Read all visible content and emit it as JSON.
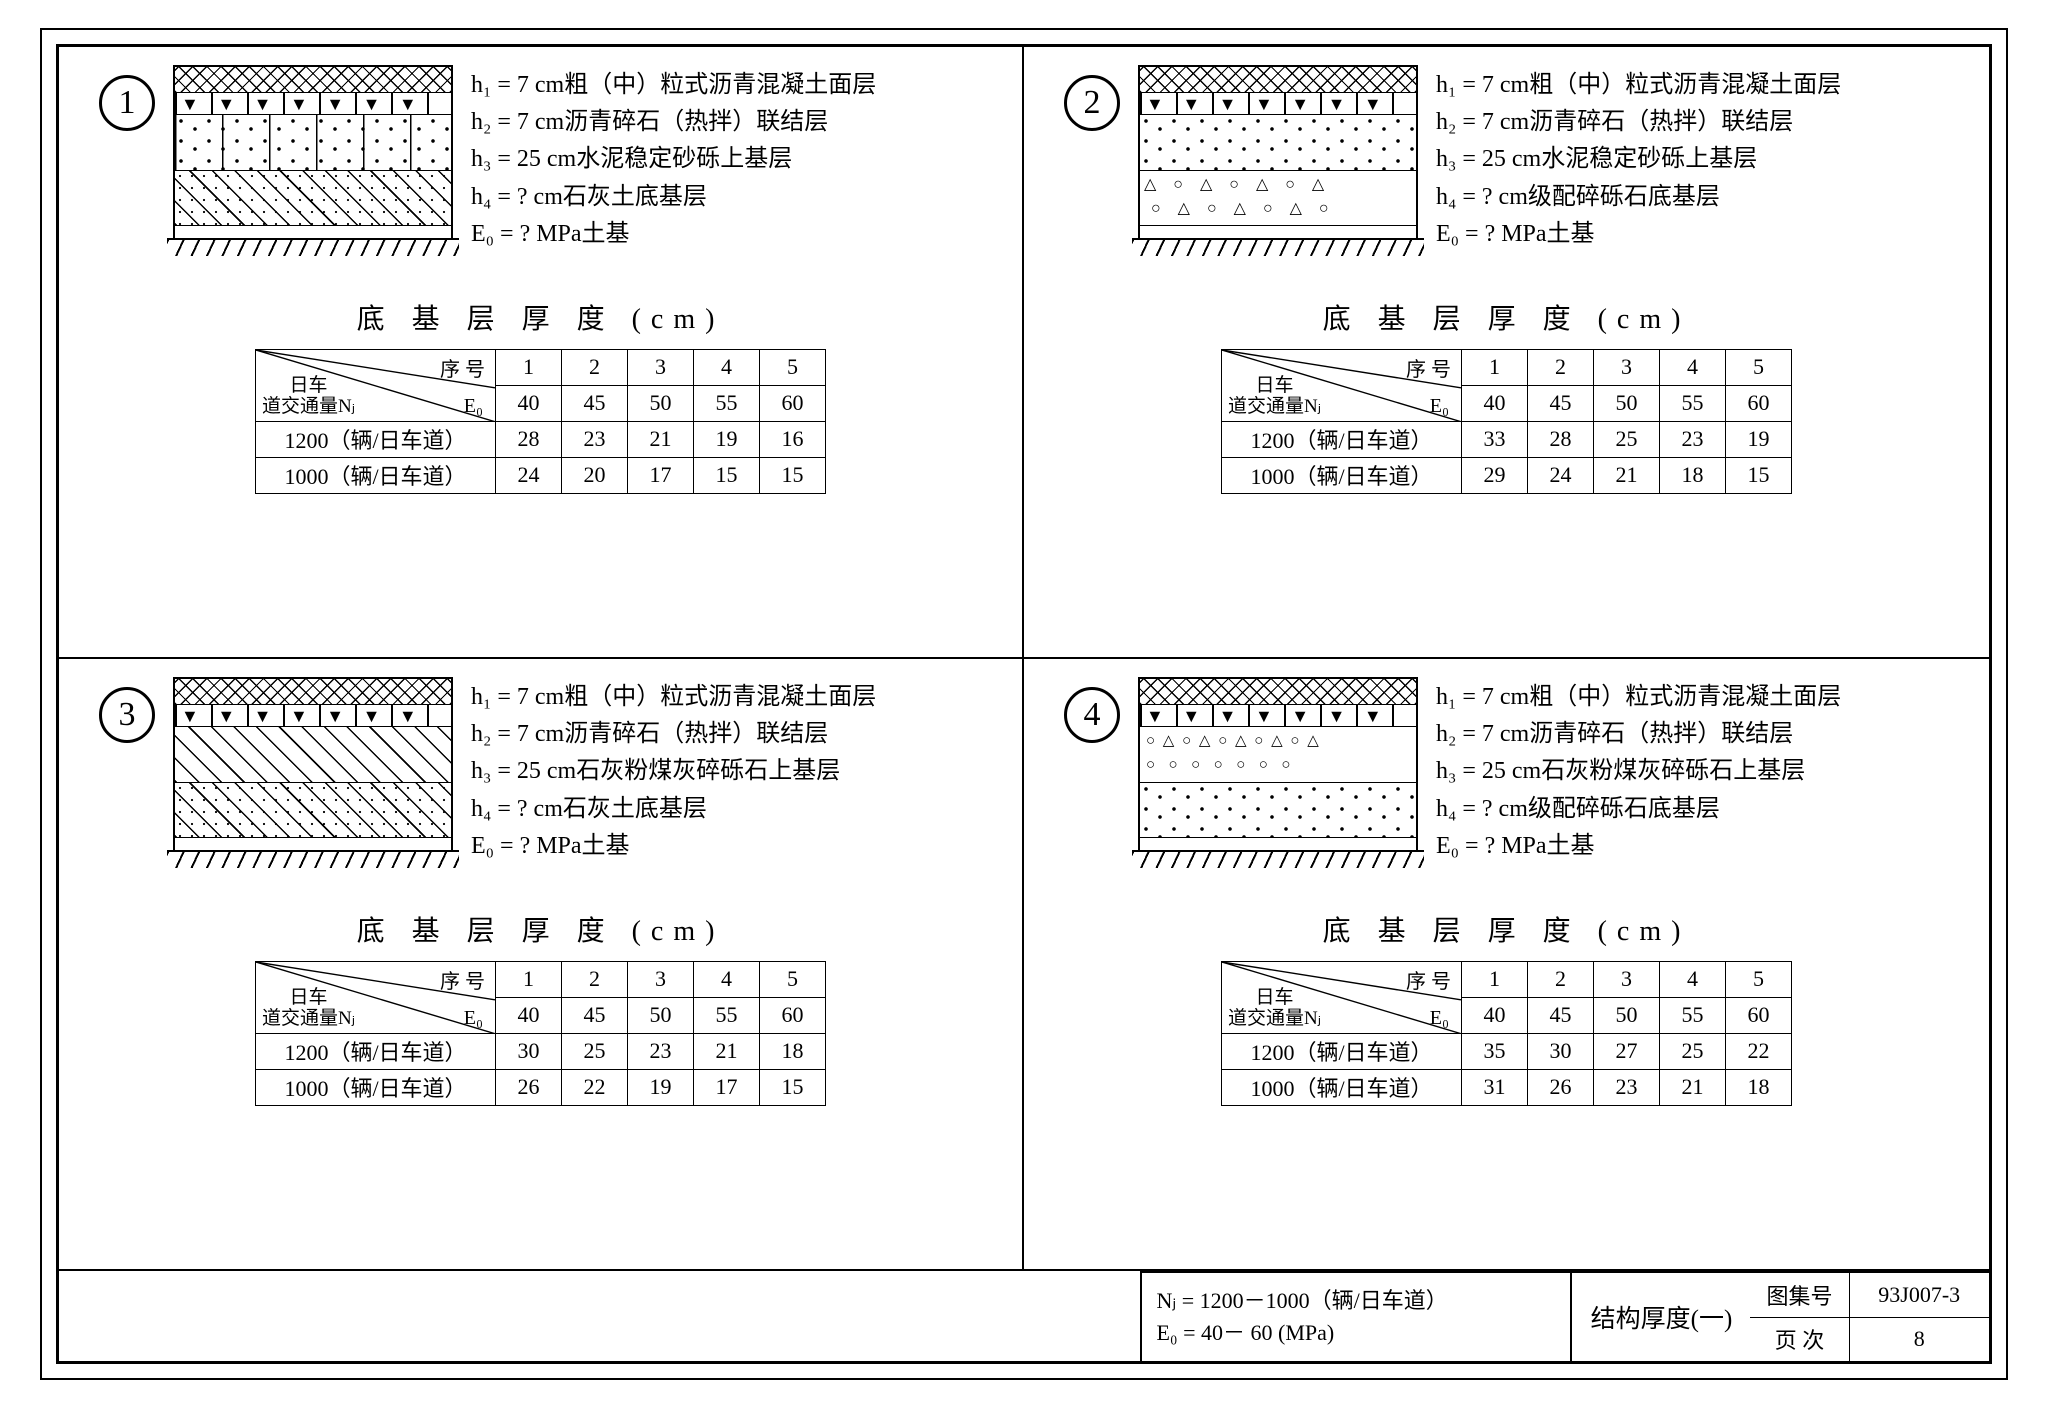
{
  "page": {
    "border_color": "#000000",
    "background": "#ffffff",
    "font_family": "SimSun"
  },
  "quadrants": [
    {
      "num": "1",
      "specs": [
        "h₁ =  7 cm粗（中）粒式沥青混凝土面层",
        "h₂ =  7 cm沥青碎石（热拌）联结层",
        "h₃ = 25 cm水泥稳定砂砾上基层",
        "h₄ =  ? cm石灰土底基层",
        "E₀ =  ? MPa土基"
      ],
      "layers": [
        "cross",
        "tri",
        "dots2",
        "diag-dots"
      ],
      "table": {
        "title": "底 基 层 厚 度   (cm)",
        "seq_label": "序 号",
        "e0_label": "E₀",
        "left_label_top": "日车",
        "left_label_bot": "道交通量Nⱼ",
        "cols": [
          "1",
          "2",
          "3",
          "4",
          "5"
        ],
        "e0_row": [
          "40",
          "45",
          "50",
          "55",
          "60"
        ],
        "rows": [
          {
            "label": "1200（辆/日车道）",
            "vals": [
              "28",
              "23",
              "21",
              "19",
              "16"
            ]
          },
          {
            "label": "1000（辆/日车道）",
            "vals": [
              "24",
              "20",
              "17",
              "15",
              "15"
            ]
          }
        ]
      }
    },
    {
      "num": "2",
      "specs": [
        "h₁ =  7 cm粗（中）粒式沥青混凝土面层",
        "h₂ =  7 cm沥青碎石（热拌）联结层",
        "h₃ = 25 cm水泥稳定砂砾上基层",
        "h₄ =  ? cm级配碎砾石底基层",
        "E₀ =  ? MPa土基"
      ],
      "layers": [
        "cross",
        "tri",
        "dots",
        "tri-open"
      ],
      "table": {
        "title": "底 基 层 厚 度   (cm)",
        "seq_label": "序 号",
        "e0_label": "E₀",
        "left_label_top": "日车",
        "left_label_bot": "道交通量Nⱼ",
        "cols": [
          "1",
          "2",
          "3",
          "4",
          "5"
        ],
        "e0_row": [
          "40",
          "45",
          "50",
          "55",
          "60"
        ],
        "rows": [
          {
            "label": "1200（辆/日车道）",
            "vals": [
              "33",
              "28",
              "25",
              "23",
              "19"
            ]
          },
          {
            "label": "1000（辆/日车道）",
            "vals": [
              "29",
              "24",
              "21",
              "18",
              "15"
            ]
          }
        ]
      }
    },
    {
      "num": "3",
      "specs": [
        "h₁ =  7 cm粗（中）粒式沥青混凝土面层",
        "h₂ =  7 cm沥青碎石（热拌）联结层",
        "h₃ = 25 cm石灰粉煤灰碎砾石上基层",
        "h₄ =  ? cm石灰土底基层",
        "E₀ =  ? MPa土基"
      ],
      "layers": [
        "cross",
        "tri",
        "diag",
        "diag-dots"
      ],
      "table": {
        "title": "底 基 层 厚 度   (cm)",
        "seq_label": "序 号",
        "e0_label": "E₀",
        "left_label_top": "日车",
        "left_label_bot": "道交通量Nⱼ",
        "cols": [
          "1",
          "2",
          "3",
          "4",
          "5"
        ],
        "e0_row": [
          "40",
          "45",
          "50",
          "55",
          "60"
        ],
        "rows": [
          {
            "label": "1200（辆/日车道）",
            "vals": [
              "30",
              "25",
              "23",
              "21",
              "18"
            ]
          },
          {
            "label": "1000（辆/日车道）",
            "vals": [
              "26",
              "22",
              "19",
              "17",
              "15"
            ]
          }
        ]
      }
    },
    {
      "num": "4",
      "specs": [
        "h₁ =  7 cm粗（中）粒式沥青混凝土面层",
        "h₂ =  7 cm沥青碎石（热拌）联结层",
        "h₃ = 25 cm石灰粉煤灰碎砾石上基层",
        "h₄ =  ? cm级配碎砾石底基层",
        "E₀ =  ? MPa土基"
      ],
      "layers": [
        "cross",
        "tri",
        "cirtri",
        "dots"
      ],
      "table": {
        "title": "底 基 层 厚 度   (cm)",
        "seq_label": "序 号",
        "e0_label": "E₀",
        "left_label_top": "日车",
        "left_label_bot": "道交通量Nⱼ",
        "cols": [
          "1",
          "2",
          "3",
          "4",
          "5"
        ],
        "e0_row": [
          "40",
          "45",
          "50",
          "55",
          "60"
        ],
        "rows": [
          {
            "label": "1200（辆/日车道）",
            "vals": [
              "35",
              "30",
              "27",
              "25",
              "22"
            ]
          },
          {
            "label": "1000（辆/日车道）",
            "vals": [
              "31",
              "26",
              "23",
              "21",
              "18"
            ]
          }
        ]
      }
    }
  ],
  "footer": {
    "nj": "Nⱼ = 1200－1000（辆/日车道）",
    "e0": "E₀ =   40－  60 (MPa)",
    "mid": "结构厚度(一)",
    "set_label": "图集号",
    "set_value": "93J007-3",
    "page_label": "页  次",
    "page_value": "8"
  },
  "layer_heights": {
    "cross": 26,
    "tri": 22,
    "mid": 56,
    "bot": 55
  }
}
